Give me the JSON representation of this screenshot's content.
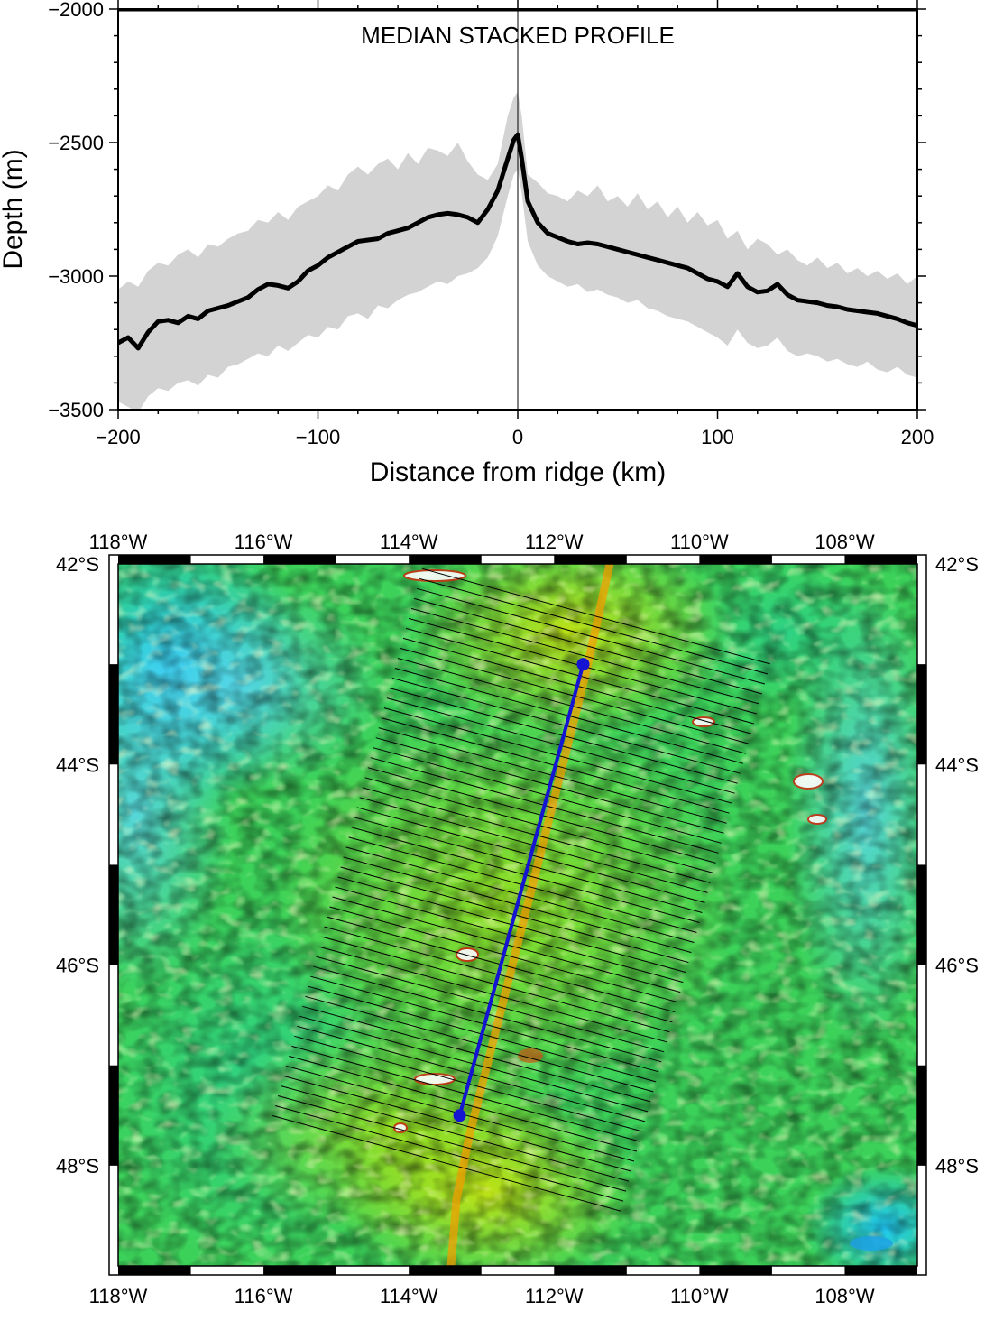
{
  "chart_data": [
    {
      "type": "line",
      "title": "MEDIAN STACKED PROFILE",
      "xlabel": "Distance from ridge (km)",
      "ylabel": "Depth (m)",
      "xlim": [
        -200,
        200
      ],
      "ylim": [
        -3500,
        -2000
      ],
      "xticks": [
        -200,
        -100,
        0,
        100,
        200
      ],
      "yticks": [
        -3500,
        -3000,
        -2500,
        -2000
      ],
      "xtick_labels": [
        "−200",
        "−100",
        "0",
        "100",
        "200"
      ],
      "ytick_labels": [
        "−3500",
        "−3000",
        "−2500",
        "−2000"
      ],
      "vertical_reference_line_x": 0,
      "grid": false,
      "series": [
        {
          "kind": "median",
          "color": "#000000",
          "x": [
            -200,
            -195,
            -190,
            -185,
            -180,
            -175,
            -170,
            -165,
            -160,
            -155,
            -150,
            -145,
            -140,
            -135,
            -130,
            -125,
            -120,
            -115,
            -110,
            -105,
            -100,
            -95,
            -90,
            -85,
            -80,
            -75,
            -70,
            -65,
            -60,
            -55,
            -50,
            -45,
            -40,
            -35,
            -30,
            -25,
            -20,
            -15,
            -10,
            -5,
            -2,
            0,
            2,
            5,
            10,
            15,
            20,
            25,
            30,
            35,
            40,
            45,
            50,
            55,
            60,
            65,
            70,
            75,
            80,
            85,
            90,
            95,
            100,
            105,
            110,
            115,
            120,
            125,
            130,
            135,
            140,
            145,
            150,
            155,
            160,
            165,
            170,
            175,
            180,
            185,
            190,
            195,
            200
          ],
          "y": [
            -3250,
            -3230,
            -3270,
            -3210,
            -3170,
            -3165,
            -3175,
            -3150,
            -3160,
            -3130,
            -3120,
            -3110,
            -3095,
            -3080,
            -3050,
            -3030,
            -3035,
            -3045,
            -3020,
            -2980,
            -2960,
            -2930,
            -2910,
            -2890,
            -2870,
            -2865,
            -2860,
            -2840,
            -2830,
            -2820,
            -2800,
            -2780,
            -2770,
            -2765,
            -2770,
            -2780,
            -2800,
            -2750,
            -2680,
            -2560,
            -2490,
            -2470,
            -2560,
            -2720,
            -2800,
            -2840,
            -2855,
            -2870,
            -2880,
            -2875,
            -2880,
            -2890,
            -2900,
            -2910,
            -2920,
            -2930,
            -2940,
            -2950,
            -2960,
            -2970,
            -2990,
            -3010,
            -3020,
            -3040,
            -2990,
            -3040,
            -3060,
            -3055,
            -3030,
            -3070,
            -3090,
            -3095,
            -3100,
            -3110,
            -3115,
            -3125,
            -3130,
            -3135,
            -3140,
            -3150,
            -3160,
            -3175,
            -3185
          ]
        },
        {
          "kind": "upper-envelope",
          "color": "#d3d3d3",
          "x": [
            -200,
            -195,
            -190,
            -185,
            -180,
            -175,
            -170,
            -165,
            -160,
            -155,
            -150,
            -145,
            -140,
            -135,
            -130,
            -125,
            -120,
            -115,
            -110,
            -105,
            -100,
            -95,
            -90,
            -85,
            -80,
            -75,
            -70,
            -65,
            -60,
            -55,
            -50,
            -45,
            -40,
            -35,
            -30,
            -25,
            -20,
            -15,
            -10,
            -5,
            -2,
            0,
            2,
            5,
            10,
            15,
            20,
            25,
            30,
            35,
            40,
            45,
            50,
            55,
            60,
            65,
            70,
            75,
            80,
            85,
            90,
            95,
            100,
            105,
            110,
            115,
            120,
            125,
            130,
            135,
            140,
            145,
            150,
            155,
            160,
            165,
            170,
            175,
            180,
            185,
            190,
            195,
            200
          ],
          "y": [
            -3050,
            -3020,
            -3040,
            -2980,
            -2950,
            -2960,
            -2920,
            -2900,
            -2930,
            -2880,
            -2890,
            -2860,
            -2840,
            -2830,
            -2790,
            -2800,
            -2760,
            -2790,
            -2740,
            -2720,
            -2700,
            -2660,
            -2680,
            -2620,
            -2590,
            -2620,
            -2580,
            -2560,
            -2600,
            -2540,
            -2580,
            -2520,
            -2530,
            -2550,
            -2500,
            -2570,
            -2620,
            -2640,
            -2580,
            -2400,
            -2330,
            -2310,
            -2400,
            -2620,
            -2650,
            -2690,
            -2700,
            -2720,
            -2680,
            -2700,
            -2660,
            -2720,
            -2700,
            -2740,
            -2690,
            -2750,
            -2720,
            -2780,
            -2740,
            -2800,
            -2760,
            -2810,
            -2790,
            -2860,
            -2830,
            -2900,
            -2860,
            -2880,
            -2920,
            -2900,
            -2940,
            -2960,
            -2930,
            -2970,
            -2950,
            -2990,
            -2970,
            -3000,
            -2980,
            -3010,
            -2990,
            -3030,
            -3000
          ]
        },
        {
          "kind": "lower-envelope",
          "color": "#d3d3d3",
          "x": [
            -200,
            -195,
            -190,
            -185,
            -180,
            -175,
            -170,
            -165,
            -160,
            -155,
            -150,
            -145,
            -140,
            -135,
            -130,
            -125,
            -120,
            -115,
            -110,
            -105,
            -100,
            -95,
            -90,
            -85,
            -80,
            -75,
            -70,
            -65,
            -60,
            -55,
            -50,
            -45,
            -40,
            -35,
            -30,
            -25,
            -20,
            -15,
            -10,
            -5,
            -2,
            0,
            2,
            5,
            10,
            15,
            20,
            25,
            30,
            35,
            40,
            45,
            50,
            55,
            60,
            65,
            70,
            75,
            80,
            85,
            90,
            95,
            100,
            105,
            110,
            115,
            120,
            125,
            130,
            135,
            140,
            145,
            150,
            155,
            160,
            165,
            170,
            175,
            180,
            185,
            190,
            195,
            200
          ],
          "y": [
            -3470,
            -3490,
            -3510,
            -3450,
            -3420,
            -3430,
            -3400,
            -3390,
            -3410,
            -3370,
            -3380,
            -3340,
            -3330,
            -3310,
            -3290,
            -3300,
            -3260,
            -3280,
            -3250,
            -3220,
            -3230,
            -3190,
            -3200,
            -3150,
            -3140,
            -3160,
            -3110,
            -3120,
            -3090,
            -3070,
            -3060,
            -3040,
            -3020,
            -3030,
            -3000,
            -2990,
            -2970,
            -2930,
            -2850,
            -2700,
            -2620,
            -2600,
            -2690,
            -2870,
            -2960,
            -3000,
            -3020,
            -3040,
            -3030,
            -3060,
            -3050,
            -3070,
            -3080,
            -3100,
            -3090,
            -3120,
            -3130,
            -3150,
            -3160,
            -3170,
            -3190,
            -3210,
            -3230,
            -3260,
            -3200,
            -3250,
            -3270,
            -3260,
            -3230,
            -3280,
            -3300,
            -3290,
            -3300,
            -3320,
            -3310,
            -3330,
            -3340,
            -3320,
            -3350,
            -3360,
            -3340,
            -3370,
            -3380
          ]
        }
      ]
    },
    {
      "type": "heatmap",
      "description_type": "map",
      "colormap": "rainbow-topography",
      "lon_range": [
        -118,
        -107
      ],
      "lat_range": [
        -49,
        -42
      ],
      "top_tick_labels": [
        "118°W",
        "116°W",
        "114°W",
        "112°W",
        "110°W",
        "108°W"
      ],
      "bottom_tick_labels": [
        "118°W",
        "116°W",
        "114°W",
        "112°W",
        "110°W",
        "108°W"
      ],
      "left_tick_labels": [
        "42°S",
        "44°S",
        "46°S",
        "48°S"
      ],
      "right_tick_labels": [
        "42°S",
        "44°S",
        "46°S",
        "48°S"
      ],
      "profile_line": {
        "color": "#1414d2",
        "start": {
          "lon": -111.6,
          "lat": -43.0
        },
        "end": {
          "lon": -113.3,
          "lat": -47.5
        }
      },
      "cross_profiles": {
        "count": 56,
        "color": "#000000"
      },
      "ridge_axis_color": "#f0a000"
    }
  ]
}
